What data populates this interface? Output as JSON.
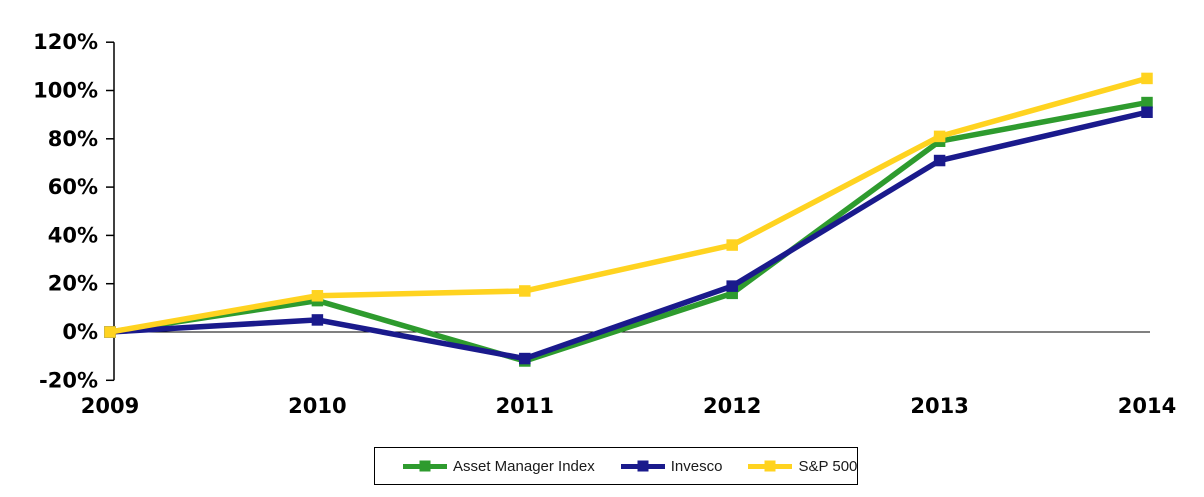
{
  "chart_data": {
    "type": "line",
    "title": "",
    "xlabel": "",
    "ylabel": "",
    "categories": [
      "2009",
      "2010",
      "2011",
      "2012",
      "2013",
      "2014"
    ],
    "series": [
      {
        "name": "Asset Manager Index",
        "color": "#2E9B2E",
        "values": [
          0,
          13,
          -12,
          16,
          79,
          95
        ]
      },
      {
        "name": "Invesco",
        "color": "#1A1A8C",
        "values": [
          0,
          5,
          -11,
          19,
          71,
          91
        ]
      },
      {
        "name": "S&P 500",
        "color": "#FFD320",
        "values": [
          0,
          15,
          17,
          36,
          81,
          105
        ]
      }
    ],
    "ylim": [
      -20,
      120
    ],
    "ytick_step": 20,
    "ytick_labels": [
      "120%",
      "100%",
      "80%",
      "60%",
      "40%",
      "20%",
      "0%",
      "-20%"
    ],
    "grid": false,
    "zero_baseline": true,
    "marker": "square",
    "legend_position": "bottom-center",
    "colors": {
      "axis": "#000000",
      "text": "#000000",
      "background": "#ffffff"
    }
  }
}
